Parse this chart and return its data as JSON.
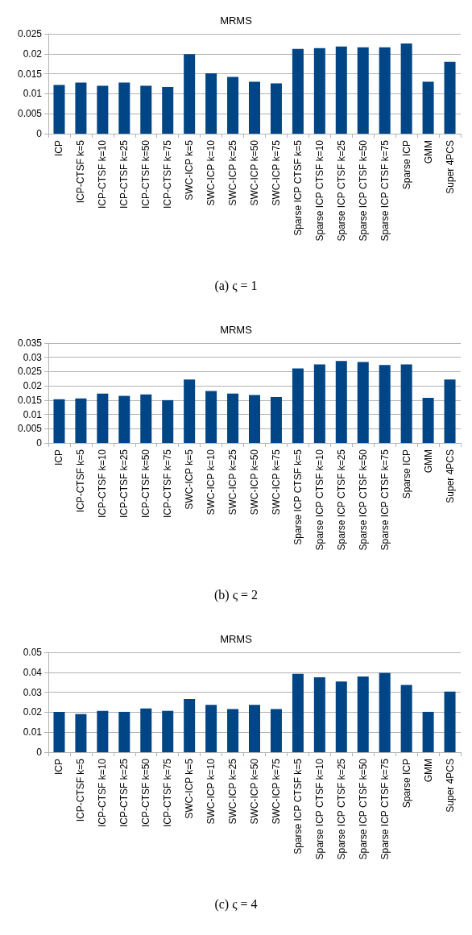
{
  "chart_data": [
    {
      "type": "bar",
      "title": "MRMS",
      "annotations": [
        "(a) ς = 1"
      ],
      "categories": [
        "ICP",
        "ICP-CTSF k=5",
        "ICP-CTSF k=10",
        "ICP-CTSF k=25",
        "ICP-CTSF k=50",
        "ICP-CTSF k=75",
        "SWC-ICP k=5",
        "SWC-ICP k=10",
        "SWC-ICP k=25",
        "SWC-ICP k=50",
        "SWC-ICP k=75",
        "Sparse ICP CTSF k=5",
        "Sparse ICP CTSF k=10",
        "Sparse ICP CTSF k=25",
        "Sparse ICP CTSF k=50",
        "Sparse ICP CTSF k=75",
        "Sparse ICP",
        "GMM",
        "Super 4PCS"
      ],
      "values": [
        0.0122,
        0.0128,
        0.012,
        0.0128,
        0.012,
        0.0117,
        0.0199,
        0.0151,
        0.0142,
        0.013,
        0.0126,
        0.0212,
        0.0214,
        0.0218,
        0.0216,
        0.0216,
        0.0226,
        0.013,
        0.018
      ],
      "color": "#004586",
      "ylim": [
        0,
        0.025
      ],
      "yticks": [
        0,
        0.005,
        0.01,
        0.015,
        0.02,
        0.025
      ],
      "grid": "y"
    },
    {
      "type": "bar",
      "title": "MRMS",
      "annotations": [
        "(b) ς = 2"
      ],
      "categories": [
        "ICP",
        "ICP-CTSF k=5",
        "ICP-CTSF k=10",
        "ICP-CTSF k=25",
        "ICP-CTSF k=50",
        "ICP-CTSF k=75",
        "SWC-ICP k=5",
        "SWC-ICP k=10",
        "SWC-ICP k=25",
        "SWC-ICP k=50",
        "SWC-ICP k=75",
        "Sparse ICP CTSF k=5",
        "Sparse ICP CTSF k=10",
        "Sparse ICP CTSF k=25",
        "Sparse ICP CTSF k=50",
        "Sparse ICP CTSF k=75",
        "Sparse ICP",
        "GMM",
        "Super 4PCS"
      ],
      "values": [
        0.0153,
        0.0156,
        0.0173,
        0.0165,
        0.017,
        0.015,
        0.0222,
        0.0182,
        0.0173,
        0.0168,
        0.0161,
        0.0261,
        0.0275,
        0.0287,
        0.0284,
        0.0273,
        0.0275,
        0.0158,
        0.0222
      ],
      "color": "#004586",
      "ylim": [
        0,
        0.035
      ],
      "yticks": [
        0,
        0.005,
        0.01,
        0.015,
        0.02,
        0.025,
        0.03,
        0.035
      ],
      "grid": "y"
    },
    {
      "type": "bar",
      "title": "MRMS",
      "annotations": [
        "(c) ς = 4"
      ],
      "categories": [
        "ICP",
        "ICP-CTSF k=5",
        "ICP-CTSF k=10",
        "ICP-CTSF k=25",
        "ICP-CTSF k=50",
        "ICP-CTSF k=75",
        "SWC-ICP k=5",
        "SWC-ICP k=10",
        "SWC-ICP k=25",
        "SWC-ICP k=50",
        "SWC-ICP k=75",
        "Sparse ICP CTSF k=5",
        "Sparse ICP CTSF k=10",
        "Sparse ICP CTSF k=25",
        "Sparse ICP CTSF k=50",
        "Sparse ICP CTSF k=75",
        "Sparse ICP",
        "GMM",
        "Super 4PCS"
      ],
      "values": [
        0.0202,
        0.0191,
        0.0207,
        0.0202,
        0.0219,
        0.0207,
        0.0266,
        0.0237,
        0.0216,
        0.0237,
        0.0216,
        0.0392,
        0.0375,
        0.0354,
        0.0379,
        0.0397,
        0.0337,
        0.0202,
        0.0303
      ],
      "color": "#004586",
      "ylim": [
        0,
        0.05
      ],
      "yticks": [
        0,
        0.01,
        0.02,
        0.03,
        0.04,
        0.05
      ],
      "grid": "y"
    }
  ]
}
